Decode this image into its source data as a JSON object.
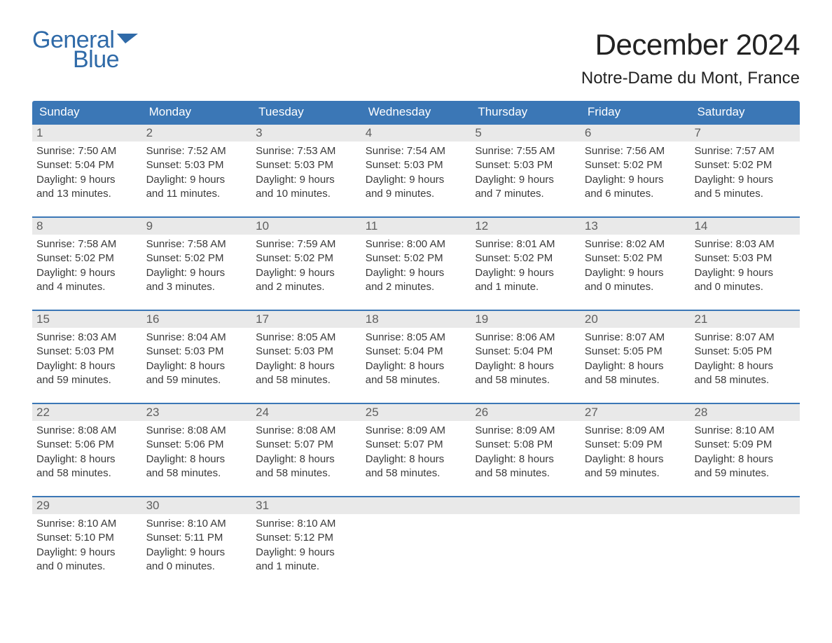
{
  "logo": {
    "general": "General",
    "blue": "Blue",
    "color": "#2f6aa8"
  },
  "title": "December 2024",
  "location": "Notre-Dame du Mont, France",
  "colors": {
    "header_bg": "#3b77b6",
    "header_fg": "#ffffff",
    "daynum_bg": "#e9e9e9",
    "daynum_border": "#3b77b6",
    "text": "#3a3a3a",
    "background": "#ffffff"
  },
  "font": {
    "family": "Arial",
    "title_size": 42,
    "location_size": 24,
    "header_size": 17,
    "body_size": 15
  },
  "day_headers": [
    "Sunday",
    "Monday",
    "Tuesday",
    "Wednesday",
    "Thursday",
    "Friday",
    "Saturday"
  ],
  "weeks": [
    [
      {
        "n": "1",
        "sunrise": "Sunrise: 7:50 AM",
        "sunset": "Sunset: 5:04 PM",
        "d1": "Daylight: 9 hours",
        "d2": "and 13 minutes."
      },
      {
        "n": "2",
        "sunrise": "Sunrise: 7:52 AM",
        "sunset": "Sunset: 5:03 PM",
        "d1": "Daylight: 9 hours",
        "d2": "and 11 minutes."
      },
      {
        "n": "3",
        "sunrise": "Sunrise: 7:53 AM",
        "sunset": "Sunset: 5:03 PM",
        "d1": "Daylight: 9 hours",
        "d2": "and 10 minutes."
      },
      {
        "n": "4",
        "sunrise": "Sunrise: 7:54 AM",
        "sunset": "Sunset: 5:03 PM",
        "d1": "Daylight: 9 hours",
        "d2": "and 9 minutes."
      },
      {
        "n": "5",
        "sunrise": "Sunrise: 7:55 AM",
        "sunset": "Sunset: 5:03 PM",
        "d1": "Daylight: 9 hours",
        "d2": "and 7 minutes."
      },
      {
        "n": "6",
        "sunrise": "Sunrise: 7:56 AM",
        "sunset": "Sunset: 5:02 PM",
        "d1": "Daylight: 9 hours",
        "d2": "and 6 minutes."
      },
      {
        "n": "7",
        "sunrise": "Sunrise: 7:57 AM",
        "sunset": "Sunset: 5:02 PM",
        "d1": "Daylight: 9 hours",
        "d2": "and 5 minutes."
      }
    ],
    [
      {
        "n": "8",
        "sunrise": "Sunrise: 7:58 AM",
        "sunset": "Sunset: 5:02 PM",
        "d1": "Daylight: 9 hours",
        "d2": "and 4 minutes."
      },
      {
        "n": "9",
        "sunrise": "Sunrise: 7:58 AM",
        "sunset": "Sunset: 5:02 PM",
        "d1": "Daylight: 9 hours",
        "d2": "and 3 minutes."
      },
      {
        "n": "10",
        "sunrise": "Sunrise: 7:59 AM",
        "sunset": "Sunset: 5:02 PM",
        "d1": "Daylight: 9 hours",
        "d2": "and 2 minutes."
      },
      {
        "n": "11",
        "sunrise": "Sunrise: 8:00 AM",
        "sunset": "Sunset: 5:02 PM",
        "d1": "Daylight: 9 hours",
        "d2": "and 2 minutes."
      },
      {
        "n": "12",
        "sunrise": "Sunrise: 8:01 AM",
        "sunset": "Sunset: 5:02 PM",
        "d1": "Daylight: 9 hours",
        "d2": "and 1 minute."
      },
      {
        "n": "13",
        "sunrise": "Sunrise: 8:02 AM",
        "sunset": "Sunset: 5:02 PM",
        "d1": "Daylight: 9 hours",
        "d2": "and 0 minutes."
      },
      {
        "n": "14",
        "sunrise": "Sunrise: 8:03 AM",
        "sunset": "Sunset: 5:03 PM",
        "d1": "Daylight: 9 hours",
        "d2": "and 0 minutes."
      }
    ],
    [
      {
        "n": "15",
        "sunrise": "Sunrise: 8:03 AM",
        "sunset": "Sunset: 5:03 PM",
        "d1": "Daylight: 8 hours",
        "d2": "and 59 minutes."
      },
      {
        "n": "16",
        "sunrise": "Sunrise: 8:04 AM",
        "sunset": "Sunset: 5:03 PM",
        "d1": "Daylight: 8 hours",
        "d2": "and 59 minutes."
      },
      {
        "n": "17",
        "sunrise": "Sunrise: 8:05 AM",
        "sunset": "Sunset: 5:03 PM",
        "d1": "Daylight: 8 hours",
        "d2": "and 58 minutes."
      },
      {
        "n": "18",
        "sunrise": "Sunrise: 8:05 AM",
        "sunset": "Sunset: 5:04 PM",
        "d1": "Daylight: 8 hours",
        "d2": "and 58 minutes."
      },
      {
        "n": "19",
        "sunrise": "Sunrise: 8:06 AM",
        "sunset": "Sunset: 5:04 PM",
        "d1": "Daylight: 8 hours",
        "d2": "and 58 minutes."
      },
      {
        "n": "20",
        "sunrise": "Sunrise: 8:07 AM",
        "sunset": "Sunset: 5:05 PM",
        "d1": "Daylight: 8 hours",
        "d2": "and 58 minutes."
      },
      {
        "n": "21",
        "sunrise": "Sunrise: 8:07 AM",
        "sunset": "Sunset: 5:05 PM",
        "d1": "Daylight: 8 hours",
        "d2": "and 58 minutes."
      }
    ],
    [
      {
        "n": "22",
        "sunrise": "Sunrise: 8:08 AM",
        "sunset": "Sunset: 5:06 PM",
        "d1": "Daylight: 8 hours",
        "d2": "and 58 minutes."
      },
      {
        "n": "23",
        "sunrise": "Sunrise: 8:08 AM",
        "sunset": "Sunset: 5:06 PM",
        "d1": "Daylight: 8 hours",
        "d2": "and 58 minutes."
      },
      {
        "n": "24",
        "sunrise": "Sunrise: 8:08 AM",
        "sunset": "Sunset: 5:07 PM",
        "d1": "Daylight: 8 hours",
        "d2": "and 58 minutes."
      },
      {
        "n": "25",
        "sunrise": "Sunrise: 8:09 AM",
        "sunset": "Sunset: 5:07 PM",
        "d1": "Daylight: 8 hours",
        "d2": "and 58 minutes."
      },
      {
        "n": "26",
        "sunrise": "Sunrise: 8:09 AM",
        "sunset": "Sunset: 5:08 PM",
        "d1": "Daylight: 8 hours",
        "d2": "and 58 minutes."
      },
      {
        "n": "27",
        "sunrise": "Sunrise: 8:09 AM",
        "sunset": "Sunset: 5:09 PM",
        "d1": "Daylight: 8 hours",
        "d2": "and 59 minutes."
      },
      {
        "n": "28",
        "sunrise": "Sunrise: 8:10 AM",
        "sunset": "Sunset: 5:09 PM",
        "d1": "Daylight: 8 hours",
        "d2": "and 59 minutes."
      }
    ],
    [
      {
        "n": "29",
        "sunrise": "Sunrise: 8:10 AM",
        "sunset": "Sunset: 5:10 PM",
        "d1": "Daylight: 9 hours",
        "d2": "and 0 minutes."
      },
      {
        "n": "30",
        "sunrise": "Sunrise: 8:10 AM",
        "sunset": "Sunset: 5:11 PM",
        "d1": "Daylight: 9 hours",
        "d2": "and 0 minutes."
      },
      {
        "n": "31",
        "sunrise": "Sunrise: 8:10 AM",
        "sunset": "Sunset: 5:12 PM",
        "d1": "Daylight: 9 hours",
        "d2": "and 1 minute."
      },
      null,
      null,
      null,
      null
    ]
  ]
}
